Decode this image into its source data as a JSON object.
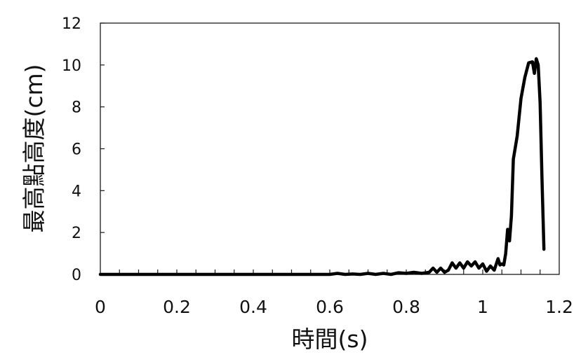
{
  "chart_data": {
    "type": "line",
    "title": "",
    "xlabel": "時間(s)",
    "ylabel": "最高點高度(cm)",
    "xlim": [
      0,
      1.2
    ],
    "ylim": [
      0,
      12
    ],
    "xticks": [
      "0",
      "0.2",
      "0.4",
      "0.6",
      "0.8",
      "1",
      "1.2"
    ],
    "yticks": [
      "0",
      "2",
      "4",
      "6",
      "8",
      "10",
      "12"
    ],
    "grid": false,
    "legend": "none",
    "line_color": "#000000",
    "series": [
      {
        "x": [
          0,
          0.1,
          0.2,
          0.3,
          0.4,
          0.5,
          0.55,
          0.6,
          0.62,
          0.64,
          0.66,
          0.68,
          0.7,
          0.72,
          0.74,
          0.76,
          0.78,
          0.8,
          0.82,
          0.84,
          0.86,
          0.87,
          0.88,
          0.89,
          0.9,
          0.91,
          0.92,
          0.93,
          0.94,
          0.95,
          0.96,
          0.97,
          0.98,
          0.99,
          1.0,
          1.01,
          1.02,
          1.03,
          1.04,
          1.045,
          1.05,
          1.055,
          1.06,
          1.065,
          1.07,
          1.075,
          1.08,
          1.09,
          1.1,
          1.11,
          1.12,
          1.13,
          1.135,
          1.14,
          1.145,
          1.15,
          1.155,
          1.16
        ],
        "y": [
          0,
          0,
          0,
          0,
          0,
          0,
          0,
          0,
          0.05,
          0,
          0.02,
          0,
          0.05,
          0,
          0.05,
          0,
          0.08,
          0.05,
          0.1,
          0.05,
          0.1,
          0.3,
          0.1,
          0.3,
          0.1,
          0.2,
          0.55,
          0.3,
          0.55,
          0.3,
          0.6,
          0.4,
          0.6,
          0.3,
          0.5,
          0.15,
          0.4,
          0.2,
          0.75,
          0.45,
          0.5,
          0.45,
          1.0,
          2.15,
          1.6,
          2.8,
          5.5,
          6.6,
          8.4,
          9.4,
          10.1,
          10.15,
          9.6,
          10.3,
          10.0,
          8.2,
          4.5,
          1.2
        ]
      }
    ]
  }
}
